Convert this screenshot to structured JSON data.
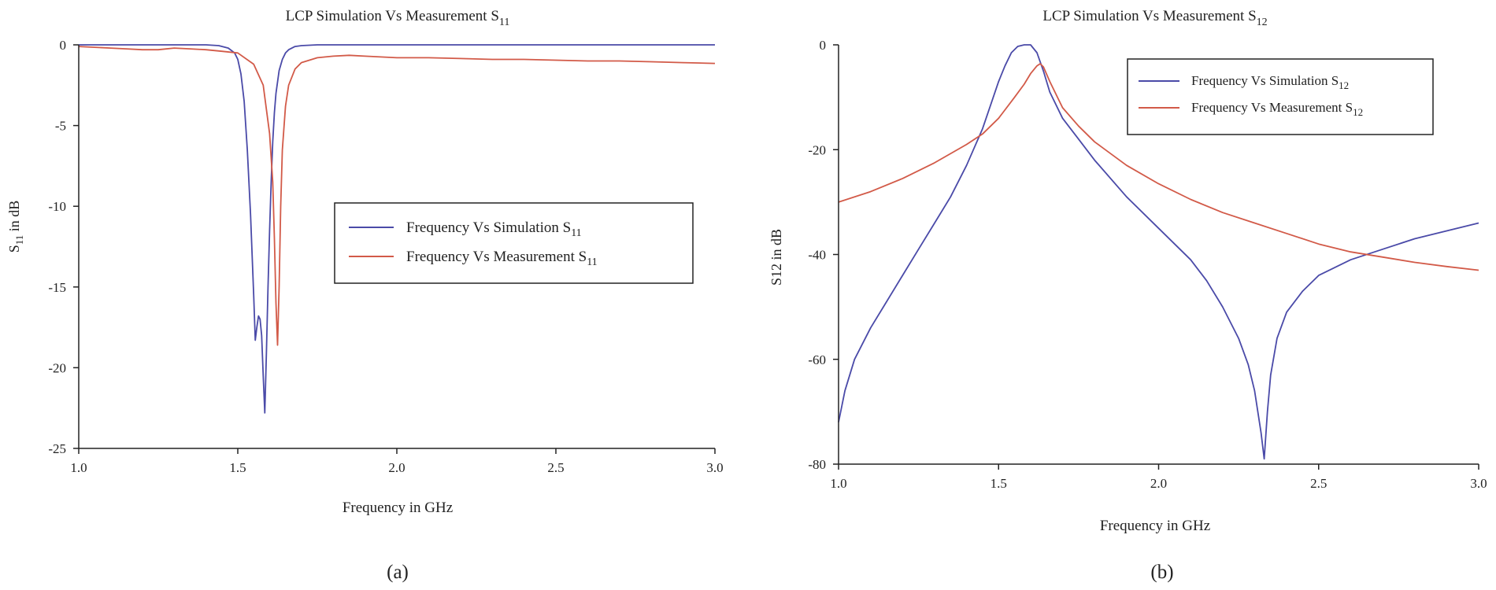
{
  "colors": {
    "simulation": "#4a4aa8",
    "measurement": "#d25a48",
    "axis": "#222222"
  },
  "chart_data": [
    {
      "type": "line",
      "panel_label": "(a)",
      "title": "LCP Simulation Vs Measurement S",
      "title_sub": "11",
      "xlabel": "Frequency in GHz",
      "ylabel": "S",
      "ylabel_sub": "11",
      "ylabel_tail": " in dB",
      "xlim": [
        1.0,
        3.0
      ],
      "ylim": [
        -25,
        0
      ],
      "xticks": [
        1.0,
        1.5,
        2.0,
        2.5,
        3.0
      ],
      "xtick_labels": [
        "1.0",
        "1.5",
        "2.0",
        "2.5",
        "3.0"
      ],
      "yticks": [
        0,
        -5,
        -10,
        -15,
        -20,
        -25
      ],
      "ytick_labels": [
        "0",
        "-5",
        "-10",
        "-15",
        "-20",
        "-25"
      ],
      "grid": false,
      "legend": {
        "placement": "center-right",
        "entries": [
          {
            "label": "Frequency Vs Simulation S",
            "sub": "11",
            "series": 0
          },
          {
            "label": "Frequency Vs Measurement S",
            "sub": "11",
            "series": 1
          }
        ]
      },
      "series": [
        {
          "name": "Frequency Vs Simulation S11",
          "color_key": "simulation",
          "x": [
            1.0,
            1.4,
            1.44,
            1.47,
            1.49,
            1.5,
            1.51,
            1.52,
            1.53,
            1.54,
            1.55,
            1.555,
            1.56,
            1.565,
            1.57,
            1.575,
            1.58,
            1.585,
            1.59,
            1.595,
            1.6,
            1.605,
            1.61,
            1.615,
            1.62,
            1.63,
            1.64,
            1.65,
            1.66,
            1.68,
            1.7,
            1.75,
            1.8,
            3.0
          ],
          "y": [
            0,
            0,
            -0.05,
            -0.2,
            -0.5,
            -0.9,
            -1.8,
            -3.5,
            -6.5,
            -10.5,
            -15.5,
            -18.3,
            -17.5,
            -16.8,
            -17.0,
            -18.0,
            -20.5,
            -22.8,
            -19.0,
            -15.0,
            -11.5,
            -8.5,
            -6.0,
            -4.2,
            -3.0,
            -1.6,
            -0.9,
            -0.5,
            -0.3,
            -0.1,
            -0.05,
            0,
            0,
            0
          ]
        },
        {
          "name": "Frequency Vs Measurement S11",
          "color_key": "measurement",
          "x": [
            1.0,
            1.05,
            1.1,
            1.15,
            1.2,
            1.25,
            1.3,
            1.35,
            1.4,
            1.45,
            1.5,
            1.55,
            1.58,
            1.6,
            1.61,
            1.615,
            1.62,
            1.625,
            1.63,
            1.635,
            1.64,
            1.65,
            1.66,
            1.68,
            1.7,
            1.75,
            1.8,
            1.85,
            1.9,
            1.95,
            2.0,
            2.1,
            2.2,
            2.3,
            2.4,
            2.5,
            2.6,
            2.7,
            2.8,
            2.9,
            3.0
          ],
          "y": [
            -0.1,
            -0.15,
            -0.2,
            -0.25,
            -0.3,
            -0.3,
            -0.2,
            -0.25,
            -0.3,
            -0.4,
            -0.5,
            -1.2,
            -2.5,
            -5.5,
            -8.5,
            -12.0,
            -16.0,
            -18.6,
            -15.0,
            -10.0,
            -6.5,
            -3.8,
            -2.5,
            -1.5,
            -1.1,
            -0.8,
            -0.7,
            -0.65,
            -0.7,
            -0.75,
            -0.8,
            -0.8,
            -0.85,
            -0.9,
            -0.9,
            -0.95,
            -1.0,
            -1.0,
            -1.05,
            -1.1,
            -1.15
          ]
        }
      ]
    },
    {
      "type": "line",
      "panel_label": "(b)",
      "title": "LCP Simulation Vs Measurement S",
      "title_sub": "12",
      "xlabel": "Frequency in GHz",
      "ylabel": "S12 in dB",
      "ylabel_sub": "",
      "ylabel_tail": "",
      "xlim": [
        1.0,
        3.0
      ],
      "ylim": [
        -80,
        0
      ],
      "xticks": [
        1.0,
        1.5,
        2.0,
        2.5,
        3.0
      ],
      "xtick_labels": [
        "1.0",
        "1.5",
        "2.0",
        "2.5",
        "3.0"
      ],
      "yticks": [
        0,
        -20,
        -40,
        -60,
        -80
      ],
      "ytick_labels": [
        "0",
        "-20",
        "-40",
        "-60",
        "-80"
      ],
      "grid": false,
      "legend": {
        "placement": "top-right",
        "entries": [
          {
            "label": "Frequency Vs Simulation S",
            "sub": "12",
            "series": 0
          },
          {
            "label": "Frequency Vs Measurement S",
            "sub": "12",
            "series": 1
          }
        ]
      },
      "series": [
        {
          "name": "Frequency Vs Simulation S12",
          "color_key": "simulation",
          "x": [
            1.0,
            1.02,
            1.05,
            1.1,
            1.15,
            1.2,
            1.25,
            1.3,
            1.35,
            1.4,
            1.45,
            1.5,
            1.52,
            1.54,
            1.56,
            1.58,
            1.6,
            1.62,
            1.64,
            1.66,
            1.7,
            1.75,
            1.8,
            1.9,
            2.0,
            2.1,
            2.15,
            2.2,
            2.25,
            2.28,
            2.3,
            2.31,
            2.32,
            2.33,
            2.34,
            2.35,
            2.37,
            2.4,
            2.45,
            2.5,
            2.6,
            2.7,
            2.8,
            2.9,
            3.0
          ],
          "y": [
            -72,
            -66,
            -60,
            -54,
            -49,
            -44,
            -39,
            -34,
            -29,
            -23,
            -16,
            -7,
            -4,
            -1.5,
            -0.3,
            0,
            0,
            -1.5,
            -5,
            -9,
            -14,
            -18,
            -22,
            -29,
            -35,
            -41,
            -45,
            -50,
            -56,
            -61,
            -66,
            -70,
            -74,
            -79,
            -70,
            -63,
            -56,
            -51,
            -47,
            -44,
            -41,
            -39,
            -37,
            -35.5,
            -34
          ]
        },
        {
          "name": "Frequency Vs Measurement S12",
          "color_key": "measurement",
          "x": [
            1.0,
            1.1,
            1.2,
            1.3,
            1.4,
            1.45,
            1.5,
            1.55,
            1.58,
            1.6,
            1.62,
            1.63,
            1.64,
            1.66,
            1.7,
            1.75,
            1.8,
            1.9,
            2.0,
            2.1,
            2.2,
            2.3,
            2.4,
            2.5,
            2.6,
            2.7,
            2.8,
            2.9,
            3.0
          ],
          "y": [
            -30,
            -28,
            -25.5,
            -22.5,
            -19,
            -17,
            -14,
            -10,
            -7.5,
            -5.5,
            -4,
            -3.6,
            -4.2,
            -7,
            -12,
            -15.5,
            -18.5,
            -23,
            -26.5,
            -29.5,
            -32,
            -34,
            -36,
            -38,
            -39.5,
            -40.5,
            -41.5,
            -42.3,
            -43
          ]
        }
      ]
    }
  ]
}
